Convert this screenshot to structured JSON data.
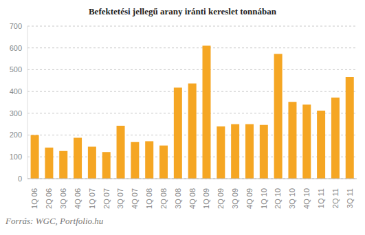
{
  "chart_data": {
    "type": "bar",
    "title": "Befektetési jellegű arany iránti kereslet tonnában",
    "source": "Forrás: WGC, Portfolio.hu",
    "categories": [
      "1Q 06",
      "2Q 06",
      "3Q 06",
      "4Q 06",
      "1Q 07",
      "2Q 07",
      "3Q 07",
      "4Q 07",
      "1Q 08",
      "2Q 08",
      "3Q 08",
      "4Q 08",
      "1Q 09",
      "2Q 09",
      "3Q 09",
      "4Q 09",
      "1Q 10",
      "2Q 10",
      "3Q 10",
      "4Q 10",
      "1Q 11",
      "2Q 11",
      "3Q 11"
    ],
    "values": [
      200,
      143,
      127,
      188,
      147,
      122,
      243,
      168,
      172,
      152,
      418,
      437,
      610,
      240,
      250,
      250,
      247,
      572,
      352,
      340,
      312,
      372,
      467
    ],
    "color": "#f5a623",
    "ylim": [
      0,
      700
    ],
    "yticks": [
      0,
      100,
      200,
      300,
      400,
      500,
      600,
      700
    ],
    "grid": true
  }
}
